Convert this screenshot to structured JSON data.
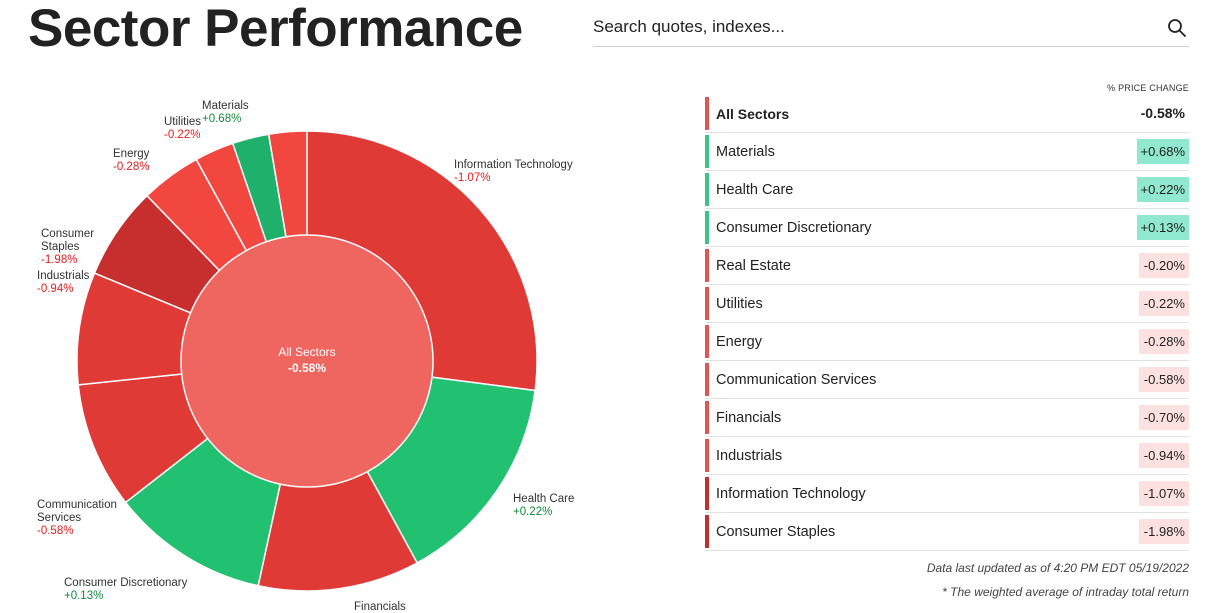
{
  "header": {
    "title": "Sector Performance",
    "search_placeholder": "Search quotes, indexes..."
  },
  "table": {
    "column_header": "% PRICE CHANGE",
    "rows": [
      {
        "name": "All Sectors",
        "value": "-0.58%"
      },
      {
        "name": "Materials",
        "value": "+0.68%"
      },
      {
        "name": "Health Care",
        "value": "+0.22%"
      },
      {
        "name": "Consumer Discretionary",
        "value": "+0.13%"
      },
      {
        "name": "Real Estate",
        "value": "-0.20%"
      },
      {
        "name": "Utilities",
        "value": "-0.22%"
      },
      {
        "name": "Energy",
        "value": "-0.28%"
      },
      {
        "name": "Communication Services",
        "value": "-0.58%"
      },
      {
        "name": "Financials",
        "value": "-0.70%"
      },
      {
        "name": "Industrials",
        "value": "-0.94%"
      },
      {
        "name": "Information Technology",
        "value": "-1.07%"
      },
      {
        "name": "Consumer Staples",
        "value": "-1.98%"
      }
    ]
  },
  "footnotes": {
    "updated": "Data last updated as of 4:20 PM EDT 05/19/2022",
    "note": "* The weighted average of intraday total return"
  },
  "colors": {
    "positive_strong": "#8fe8cf",
    "positive_bar": "#3cc48a",
    "negative_light": "#fde1e1",
    "negative_bar": "#e05555",
    "negative_strong_bar": "#c0302e",
    "pie_green": "#22c172",
    "pie_green_dark": "#1fb06b",
    "pie_red": "#e03a37",
    "pie_red_light": "#f2473f",
    "pie_red_dark": "#c62f2d",
    "center": "#ef6661"
  },
  "chart_data": {
    "type": "pie",
    "title": "",
    "center": {
      "label": "All Sectors",
      "value": "-0.58%"
    },
    "series": [
      {
        "name": "Information Technology",
        "weight": 27.4,
        "change": "-1.07%"
      },
      {
        "name": "Health Care",
        "weight": 15.2,
        "change": "+0.22%"
      },
      {
        "name": "Financials",
        "weight": 11.5,
        "change": "-0.70%"
      },
      {
        "name": "Consumer Discretionary",
        "weight": 11.2,
        "change": "+0.13%"
      },
      {
        "name": "Communication Services",
        "weight": 9.0,
        "change": "-0.58%"
      },
      {
        "name": "Industrials",
        "weight": 8.0,
        "change": "-0.94%"
      },
      {
        "name": "Consumer Staples",
        "weight": 6.6,
        "change": "-1.98%"
      },
      {
        "name": "Energy",
        "weight": 4.3,
        "change": "-0.28%"
      },
      {
        "name": "Utilities",
        "weight": 2.8,
        "change": "-0.22%"
      },
      {
        "name": "Materials",
        "weight": 2.6,
        "change": "+0.68%"
      },
      {
        "name": "Real Estate",
        "weight": 2.7,
        "change": ""
      }
    ]
  }
}
